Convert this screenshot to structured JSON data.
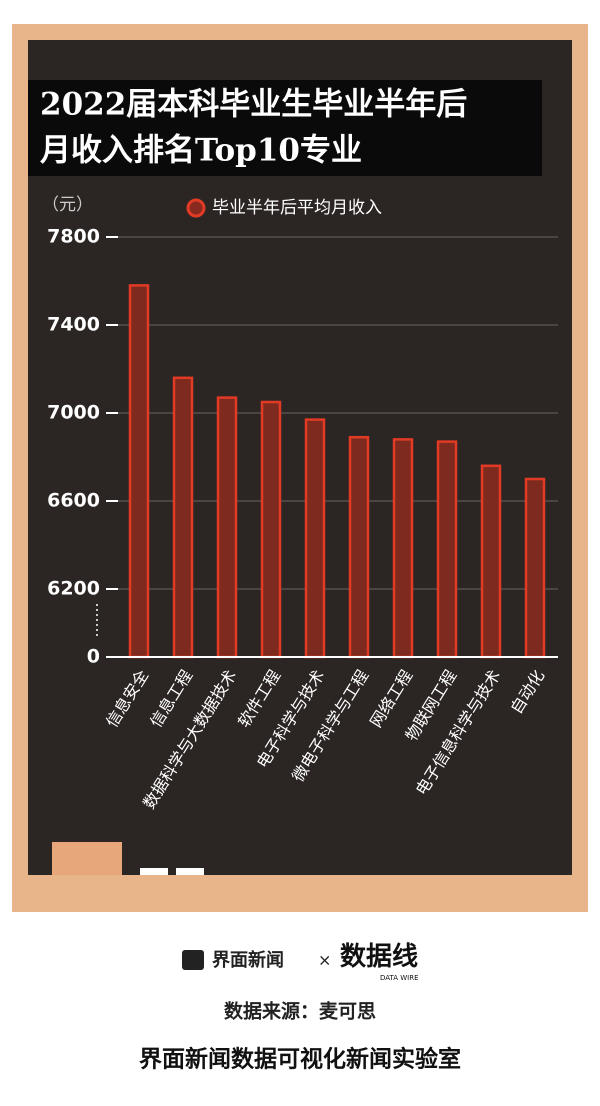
{
  "chart_data": {
    "type": "bar",
    "title": [
      "2022届本科毕业生毕业半年后",
      "月收入排名Top10专业"
    ],
    "unit": "（元）",
    "categories": [
      "信息安全",
      "信息工程",
      "数据科学与大数据技术",
      "软件工程",
      "电子科学与技术",
      "微电子科学与工程",
      "网络工程",
      "物联网工程",
      "电子信息科学与技术",
      "自动化"
    ],
    "series": [
      {
        "name": "毕业半年后平均月收入",
        "color": "#e23b25",
        "values": [
          7580,
          7160,
          7070,
          7050,
          6970,
          6890,
          6880,
          6870,
          6760,
          6700
        ]
      }
    ],
    "ylim": [
      0,
      7800
    ],
    "yticks": [
      0,
      6200,
      6600,
      7000,
      7400,
      7800
    ],
    "grid": true
  },
  "footer": {
    "brand": "界面新闻",
    "cross": "×",
    "partner": "数据线",
    "partner_sub": "DATA WIRE",
    "source": "数据来源：麦可思",
    "lab": "界面新闻数据可视化新闻实验室"
  }
}
